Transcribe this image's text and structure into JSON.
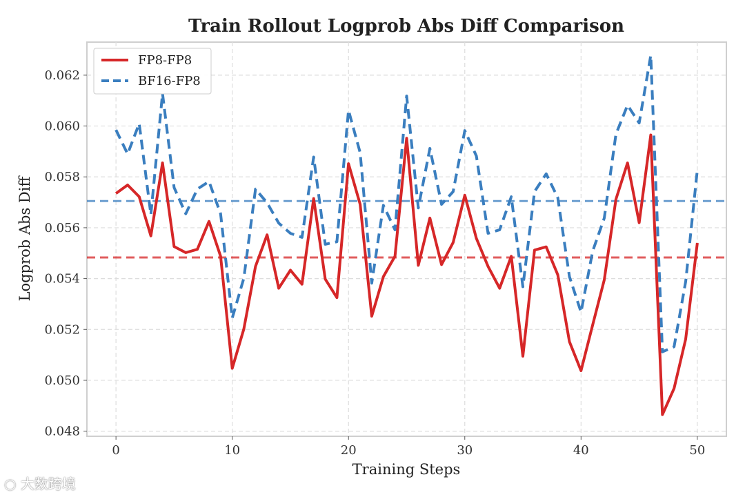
{
  "chart_data": {
    "type": "line",
    "title": "Train Rollout Logprob Abs Diff Comparison",
    "xlabel": "Training Steps",
    "ylabel": "Logprob Abs Diff",
    "xlim": [
      -2.5,
      52.5
    ],
    "ylim": [
      0.0478,
      0.0633
    ],
    "xticks": [
      0,
      10,
      20,
      30,
      40,
      50
    ],
    "yticks": [
      0.048,
      0.05,
      0.052,
      0.054,
      0.056,
      0.058,
      0.06,
      0.062
    ],
    "ytick_labels": [
      "0.048",
      "0.050",
      "0.052",
      "0.054",
      "0.056",
      "0.058",
      "0.060",
      "0.062"
    ],
    "grid": true,
    "legend_location": "top-left",
    "x": [
      0,
      1,
      2,
      3,
      4,
      5,
      6,
      7,
      8,
      9,
      10,
      11,
      12,
      13,
      14,
      15,
      16,
      17,
      18,
      19,
      20,
      21,
      22,
      23,
      24,
      25,
      26,
      27,
      28,
      29,
      30,
      31,
      32,
      33,
      34,
      35,
      36,
      37,
      38,
      39,
      40,
      41,
      42,
      43,
      44,
      45,
      46,
      47,
      48,
      49,
      50
    ],
    "series": [
      {
        "name": "FP8-FP8",
        "color": "#d62728",
        "style": "solid",
        "mean": 0.05483,
        "values": [
          0.05735,
          0.05768,
          0.05722,
          0.05568,
          0.05855,
          0.05526,
          0.05502,
          0.05515,
          0.05625,
          0.05488,
          0.05047,
          0.05202,
          0.05448,
          0.05572,
          0.05362,
          0.05433,
          0.05378,
          0.05715,
          0.05398,
          0.05325,
          0.05852,
          0.05692,
          0.05252,
          0.05408,
          0.05488,
          0.05952,
          0.05452,
          0.05638,
          0.05455,
          0.05542,
          0.05728,
          0.05558,
          0.05448,
          0.05362,
          0.05488,
          0.05095,
          0.05512,
          0.05525,
          0.05415,
          0.05152,
          0.05038,
          0.05218,
          0.05395,
          0.05712,
          0.05855,
          0.0562,
          0.05965,
          0.04865,
          0.04968,
          0.05162,
          0.0554
        ]
      },
      {
        "name": "BF16-FP8",
        "color": "#3a7ebf",
        "style": "dashed",
        "mean": 0.05705,
        "values": [
          0.05985,
          0.0589,
          0.0601,
          0.05652,
          0.06128,
          0.05758,
          0.05655,
          0.05752,
          0.05782,
          0.05655,
          0.05245,
          0.05402,
          0.05752,
          0.05698,
          0.05618,
          0.05578,
          0.05562,
          0.05878,
          0.05535,
          0.05545,
          0.06062,
          0.05895,
          0.05382,
          0.05688,
          0.05592,
          0.06118,
          0.05678,
          0.05912,
          0.05692,
          0.05742,
          0.05982,
          0.05882,
          0.05578,
          0.05592,
          0.05722,
          0.05368,
          0.05742,
          0.05812,
          0.05718,
          0.05408,
          0.05268,
          0.05508,
          0.05638,
          0.05968,
          0.06082,
          0.06012,
          0.06278,
          0.05112,
          0.05132,
          0.05388,
          0.05828
        ]
      }
    ]
  },
  "watermark": {
    "text": "大数跨境"
  }
}
